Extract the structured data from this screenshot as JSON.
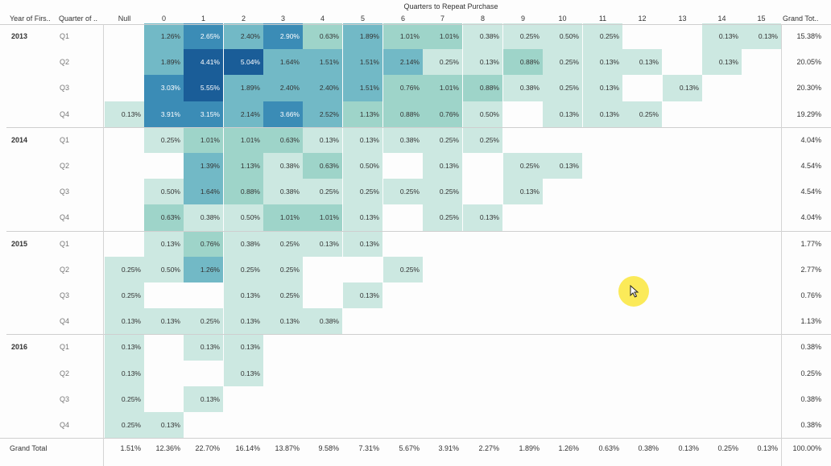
{
  "header": {
    "title": "Quarters to Repeat Purchase",
    "row_header_1": "Year of Firs..",
    "row_header_2": "Quarter of ..",
    "grand_total_col": "Grand Tot..",
    "columns": [
      "Null",
      "0",
      "1",
      "2",
      "3",
      "4",
      "5",
      "6",
      "7",
      "8",
      "9",
      "10",
      "11",
      "12",
      "13",
      "14",
      "15"
    ]
  },
  "colors": {
    "lightest": "#cce8e1",
    "light": "#9ed4c9",
    "mid": "#72b9c6",
    "dark": "#3b8cb6",
    "darkest": "#1a5d98"
  },
  "rows": [
    {
      "year": "2013",
      "quarter": "Q1",
      "total": "15.38%",
      "cells": [
        null,
        "1.26%",
        "2.65%",
        "2.40%",
        "2.90%",
        "0.63%",
        "1.89%",
        "1.01%",
        "1.01%",
        "0.38%",
        "0.25%",
        "0.50%",
        "0.25%",
        null,
        null,
        "0.13%",
        "0.13%"
      ]
    },
    {
      "year": "",
      "quarter": "Q2",
      "total": "20.05%",
      "cells": [
        null,
        "1.89%",
        "4.41%",
        "5.04%",
        "1.64%",
        "1.51%",
        "1.51%",
        "2.14%",
        "0.25%",
        "0.13%",
        "0.88%",
        "0.25%",
        "0.13%",
        "0.13%",
        null,
        "0.13%",
        null
      ]
    },
    {
      "year": "",
      "quarter": "Q3",
      "total": "20.30%",
      "cells": [
        null,
        "3.03%",
        "5.55%",
        "1.89%",
        "2.40%",
        "2.40%",
        "1.51%",
        "0.76%",
        "1.01%",
        "0.88%",
        "0.38%",
        "0.25%",
        "0.13%",
        null,
        "0.13%",
        null,
        null
      ]
    },
    {
      "year": "",
      "quarter": "Q4",
      "total": "19.29%",
      "cells": [
        "0.13%",
        "3.91%",
        "3.15%",
        "2.14%",
        "3.66%",
        "2.52%",
        "1.13%",
        "0.88%",
        "0.76%",
        "0.50%",
        null,
        "0.13%",
        "0.13%",
        "0.25%",
        null,
        null,
        null
      ]
    },
    {
      "year": "2014",
      "quarter": "Q1",
      "total": "4.04%",
      "cells": [
        null,
        "0.25%",
        "1.01%",
        "1.01%",
        "0.63%",
        "0.13%",
        "0.13%",
        "0.38%",
        "0.25%",
        "0.25%",
        null,
        null,
        null,
        null,
        null,
        null,
        null
      ]
    },
    {
      "year": "",
      "quarter": "Q2",
      "total": "4.54%",
      "cells": [
        null,
        null,
        "1.39%",
        "1.13%",
        "0.38%",
        "0.63%",
        "0.50%",
        null,
        "0.13%",
        null,
        "0.25%",
        "0.13%",
        null,
        null,
        null,
        null,
        null
      ]
    },
    {
      "year": "",
      "quarter": "Q3",
      "total": "4.54%",
      "cells": [
        null,
        "0.50%",
        "1.64%",
        "0.88%",
        "0.38%",
        "0.25%",
        "0.25%",
        "0.25%",
        "0.25%",
        null,
        "0.13%",
        null,
        null,
        null,
        null,
        null,
        null
      ]
    },
    {
      "year": "",
      "quarter": "Q4",
      "total": "4.04%",
      "cells": [
        null,
        "0.63%",
        "0.38%",
        "0.50%",
        "1.01%",
        "1.01%",
        "0.13%",
        null,
        "0.25%",
        "0.13%",
        null,
        null,
        null,
        null,
        null,
        null,
        null
      ]
    },
    {
      "year": "2015",
      "quarter": "Q1",
      "total": "1.77%",
      "cells": [
        null,
        "0.13%",
        "0.76%",
        "0.38%",
        "0.25%",
        "0.13%",
        "0.13%",
        null,
        null,
        null,
        null,
        null,
        null,
        null,
        null,
        null,
        null
      ]
    },
    {
      "year": "",
      "quarter": "Q2",
      "total": "2.77%",
      "cells": [
        "0.25%",
        "0.50%",
        "1.26%",
        "0.25%",
        "0.25%",
        null,
        null,
        "0.25%",
        null,
        null,
        null,
        null,
        null,
        null,
        null,
        null,
        null
      ]
    },
    {
      "year": "",
      "quarter": "Q3",
      "total": "0.76%",
      "cells": [
        "0.25%",
        null,
        null,
        "0.13%",
        "0.25%",
        null,
        "0.13%",
        null,
        null,
        null,
        null,
        null,
        null,
        null,
        null,
        null,
        null
      ]
    },
    {
      "year": "",
      "quarter": "Q4",
      "total": "1.13%",
      "cells": [
        "0.13%",
        "0.13%",
        "0.25%",
        "0.13%",
        "0.13%",
        "0.38%",
        null,
        null,
        null,
        null,
        null,
        null,
        null,
        null,
        null,
        null,
        null
      ]
    },
    {
      "year": "2016",
      "quarter": "Q1",
      "total": "0.38%",
      "cells": [
        "0.13%",
        null,
        "0.13%",
        "0.13%",
        null,
        null,
        null,
        null,
        null,
        null,
        null,
        null,
        null,
        null,
        null,
        null,
        null
      ]
    },
    {
      "year": "",
      "quarter": "Q2",
      "total": "0.25%",
      "cells": [
        "0.13%",
        null,
        null,
        "0.13%",
        null,
        null,
        null,
        null,
        null,
        null,
        null,
        null,
        null,
        null,
        null,
        null,
        null
      ]
    },
    {
      "year": "",
      "quarter": "Q3",
      "total": "0.38%",
      "cells": [
        "0.25%",
        null,
        "0.13%",
        null,
        null,
        null,
        null,
        null,
        null,
        null,
        null,
        null,
        null,
        null,
        null,
        null,
        null
      ]
    },
    {
      "year": "",
      "quarter": "Q4",
      "total": "0.38%",
      "cells": [
        "0.25%",
        "0.13%",
        null,
        null,
        null,
        null,
        null,
        null,
        null,
        null,
        null,
        null,
        null,
        null,
        null,
        null,
        null
      ]
    }
  ],
  "grand_total": {
    "label": "Grand Total",
    "values": [
      "1.51%",
      "12.36%",
      "22.70%",
      "16.14%",
      "13.87%",
      "9.58%",
      "7.31%",
      "5.67%",
      "3.91%",
      "2.27%",
      "1.89%",
      "1.26%",
      "0.63%",
      "0.38%",
      "0.13%",
      "0.25%",
      "0.13%"
    ],
    "total": "100.00%"
  },
  "cursor": {
    "icon": "mouse-pointer-icon"
  }
}
